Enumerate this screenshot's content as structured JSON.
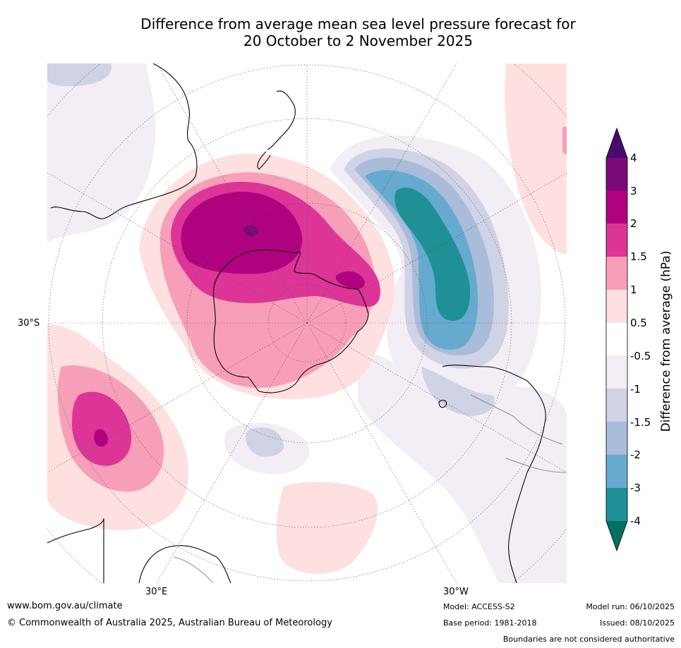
{
  "title": {
    "line1": "Difference from average mean sea level pressure forecast for",
    "line2": "20 October to 2 November 2025"
  },
  "map": {
    "projection": "south-polar-stereographic",
    "lat_label": "30°S",
    "lon_labels": {
      "east": "30°E",
      "west": "30°W"
    }
  },
  "colorbar": {
    "title": "Difference from average (hPa)",
    "ticks": [
      "4",
      "3",
      "2",
      "1.5",
      "1",
      "0.5",
      "-0.5",
      "-1",
      "-1.5",
      "-2",
      "-3",
      "-4"
    ],
    "colors": {
      "gt4": "#4a0a6e",
      "3to4": "#7a0a78",
      "2to3": "#b0027f",
      "1.5to2": "#dc3597",
      "1to1.5": "#f79fb8",
      "0.5to1": "#fde0df",
      "neutral": "#ffffff",
      "-1to-0.5": "#f3eef6",
      "-1.5to-1": "#d0d2e6",
      "-2to-1.5": "#a9bcd9",
      "-3to-2": "#67aad0",
      "-4to-3": "#1f9096",
      "lt-4": "#00705f"
    }
  },
  "footer": {
    "website": "www.bom.gov.au/climate",
    "copyright": "© Commonwealth of Australia 2025, Australian Bureau of Meteorology",
    "model": "Model: ACCESS-S2",
    "base_period": "Base period: 1981-2018",
    "model_run": "Model run: 06/10/2025",
    "issued": "Issued: 08/10/2025",
    "disclaimer": "Boundaries are not considered authoritative"
  }
}
